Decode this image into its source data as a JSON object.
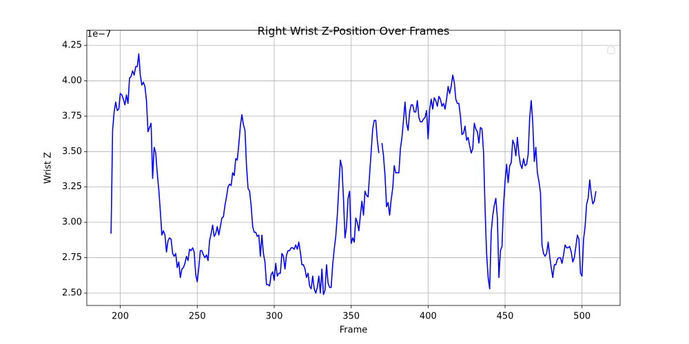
{
  "chart_data": {
    "type": "line",
    "title": "Right Wrist Z-Position Over Frames",
    "xlabel": "Frame",
    "ylabel": "Wrist Z",
    "y_offset_label": "1e−7",
    "grid": true,
    "legend": "upper right",
    "xlim": [
      178.25,
      524.75
    ],
    "ylim": [
      2.4125,
      4.357
    ],
    "xticks": [
      200,
      250,
      300,
      350,
      400,
      450,
      500
    ],
    "yticks": [
      {
        "value": 2.5,
        "label": "2.50"
      },
      {
        "value": 2.75,
        "label": "2.75"
      },
      {
        "value": 3.0,
        "label": "3.00"
      },
      {
        "value": 3.25,
        "label": "3.25"
      },
      {
        "value": 3.5,
        "label": "3.50"
      },
      {
        "value": 3.75,
        "label": "3.75"
      },
      {
        "value": 4.0,
        "label": "4.00"
      },
      {
        "value": 4.25,
        "label": "4.25"
      }
    ],
    "x": [
      194,
      195,
      196,
      197,
      198,
      199,
      200,
      201,
      202,
      203,
      204,
      205,
      206,
      207,
      208,
      209,
      210,
      211,
      212,
      213,
      214,
      215,
      216,
      217,
      218,
      219,
      220,
      221,
      222,
      223,
      224,
      225,
      226,
      227,
      228,
      229,
      230,
      231,
      232,
      233,
      234,
      235,
      236,
      237,
      238,
      239,
      240,
      241,
      242,
      243,
      244,
      245,
      246,
      247,
      248,
      249,
      250,
      251,
      252,
      253,
      254,
      255,
      256,
      257,
      258,
      259,
      260,
      261,
      262,
      263,
      264,
      265,
      266,
      267,
      268,
      269,
      270,
      271,
      272,
      273,
      274,
      275,
      276,
      277,
      278,
      279,
      280,
      281,
      282,
      283,
      284,
      285,
      286,
      287,
      288,
      289,
      290,
      291,
      292,
      293,
      294,
      295,
      296,
      297,
      298,
      299,
      300,
      301,
      302,
      303,
      304,
      305,
      306,
      307,
      308,
      309,
      310,
      311,
      312,
      313,
      314,
      315,
      316,
      317,
      318,
      319,
      320,
      321,
      322,
      323,
      324,
      325,
      326,
      327,
      328,
      329,
      330,
      331,
      332,
      333,
      334,
      335,
      336,
      337,
      338,
      339,
      340,
      341,
      342,
      343,
      344,
      345,
      346,
      347,
      348,
      349,
      350,
      351,
      352,
      353,
      354,
      355,
      356,
      357,
      358,
      359,
      360,
      361,
      362,
      363,
      364,
      365,
      366,
      367,
      368,
      369,
      370,
      371,
      372,
      373,
      374,
      375,
      376,
      377,
      378,
      379,
      380,
      381,
      382,
      383,
      384,
      385,
      386,
      387,
      388,
      389,
      390,
      391,
      392,
      393,
      394,
      395,
      396,
      397,
      398,
      399,
      400,
      401,
      402,
      403,
      404,
      405,
      406,
      407,
      408,
      409,
      410,
      411,
      412,
      413,
      414,
      415,
      416,
      417,
      418,
      419,
      420,
      421,
      422,
      423,
      424,
      425,
      426,
      427,
      428,
      429,
      430,
      431,
      432,
      433,
      434,
      435,
      436,
      437,
      438,
      439,
      440,
      441,
      442,
      443,
      444,
      445,
      446,
      447,
      448,
      449,
      450,
      451,
      452,
      453,
      454,
      455,
      456,
      457,
      458,
      459,
      460,
      461,
      462,
      463,
      464,
      465,
      466,
      467,
      468,
      469,
      470,
      471,
      472,
      473,
      474,
      475,
      476,
      477,
      478,
      479,
      480,
      481,
      482,
      483,
      484,
      485,
      486,
      487,
      488,
      489,
      490,
      491,
      492,
      493,
      494,
      495,
      496,
      497,
      498,
      499,
      500,
      501,
      502,
      503,
      504,
      505,
      506,
      507,
      508,
      509
    ],
    "series": [
      {
        "color": "#0000ff",
        "values": [
          2.92,
          3.65,
          3.78,
          3.85,
          3.79,
          3.8,
          3.91,
          3.9,
          3.87,
          3.83,
          3.9,
          3.84,
          4.02,
          4.03,
          4.07,
          4.04,
          4.1,
          4.1,
          4.19,
          4.04,
          3.97,
          3.99,
          3.96,
          3.86,
          3.64,
          3.67,
          3.7,
          3.31,
          3.53,
          3.49,
          3.35,
          3.23,
          3.08,
          2.91,
          2.94,
          2.91,
          2.79,
          2.87,
          2.89,
          2.88,
          2.78,
          2.76,
          2.78,
          2.68,
          2.72,
          2.61,
          2.67,
          2.68,
          2.71,
          2.76,
          2.73,
          2.81,
          2.8,
          2.82,
          2.79,
          2.63,
          2.58,
          2.68,
          2.8,
          2.8,
          2.77,
          2.75,
          2.77,
          2.73,
          2.87,
          2.92,
          2.98,
          2.9,
          2.92,
          2.97,
          2.91,
          2.97,
          3.03,
          3.04,
          3.12,
          3.18,
          3.25,
          3.27,
          3.26,
          3.35,
          3.33,
          3.45,
          3.44,
          3.55,
          3.68,
          3.76,
          3.69,
          3.65,
          3.4,
          3.24,
          3.22,
          3.12,
          2.97,
          2.93,
          2.93,
          2.9,
          2.91,
          2.76,
          2.91,
          2.78,
          2.72,
          2.56,
          2.56,
          2.55,
          2.63,
          2.65,
          2.59,
          2.71,
          2.62,
          2.64,
          2.64,
          2.78,
          2.76,
          2.67,
          2.77,
          2.8,
          2.8,
          2.82,
          2.82,
          2.81,
          2.84,
          2.81,
          2.86,
          2.79,
          2.7,
          2.7,
          2.67,
          2.61,
          2.64,
          2.55,
          2.53,
          2.62,
          2.53,
          2.5,
          2.54,
          2.62,
          2.5,
          2.67,
          2.49,
          2.52,
          2.7,
          2.57,
          2.54,
          2.54,
          2.7,
          2.81,
          2.9,
          3.05,
          3.25,
          3.44,
          3.39,
          3.17,
          2.89,
          2.97,
          3.17,
          3.22,
          2.85,
          2.89,
          2.86,
          3.03,
          3.0,
          2.94,
          3.05,
          3.15,
          3.05,
          3.22,
          3.19,
          3.18,
          3.34,
          3.5,
          3.66,
          3.72,
          3.72,
          3.58,
          3.49,
          null,
          3.56,
          3.47,
          3.33,
          3.11,
          3.14,
          3.05,
          3.16,
          3.24,
          3.4,
          3.35,
          3.35,
          3.35,
          3.52,
          3.6,
          3.72,
          3.85,
          3.7,
          3.65,
          3.78,
          3.83,
          3.83,
          3.78,
          3.78,
          3.86,
          3.74,
          3.71,
          3.71,
          3.73,
          3.74,
          3.79,
          3.59,
          3.8,
          3.87,
          3.8,
          3.88,
          3.86,
          3.82,
          3.89,
          3.87,
          3.82,
          3.84,
          3.8,
          3.87,
          3.96,
          3.91,
          3.96,
          4.04,
          3.99,
          3.87,
          3.84,
          3.84,
          3.75,
          3.62,
          3.63,
          3.68,
          3.58,
          3.6,
          3.54,
          3.49,
          3.52,
          3.7,
          3.66,
          3.64,
          3.56,
          3.67,
          3.66,
          3.5,
          3.1,
          2.78,
          2.61,
          2.53,
          2.93,
          3.05,
          3.12,
          3.17,
          3.03,
          2.61,
          2.8,
          2.83,
          3.12,
          3.29,
          3.41,
          3.28,
          3.4,
          3.42,
          3.58,
          3.55,
          3.47,
          3.6,
          3.48,
          3.41,
          3.38,
          3.45,
          3.4,
          3.41,
          3.48,
          3.74,
          3.86,
          3.7,
          3.43,
          3.53,
          3.35,
          3.29,
          3.21,
          2.84,
          2.78,
          2.76,
          2.78,
          2.86,
          2.76,
          2.68,
          2.61,
          2.7,
          2.7,
          2.74,
          2.75,
          2.75,
          2.71,
          2.77,
          2.84,
          2.82,
          2.82,
          2.83,
          2.79,
          2.72,
          2.75,
          2.83,
          2.91,
          2.88,
          2.64,
          2.62,
          2.88,
          2.97,
          3.13,
          3.17,
          3.3,
          3.2,
          3.13,
          3.15,
          3.22
        ]
      }
    ]
  }
}
